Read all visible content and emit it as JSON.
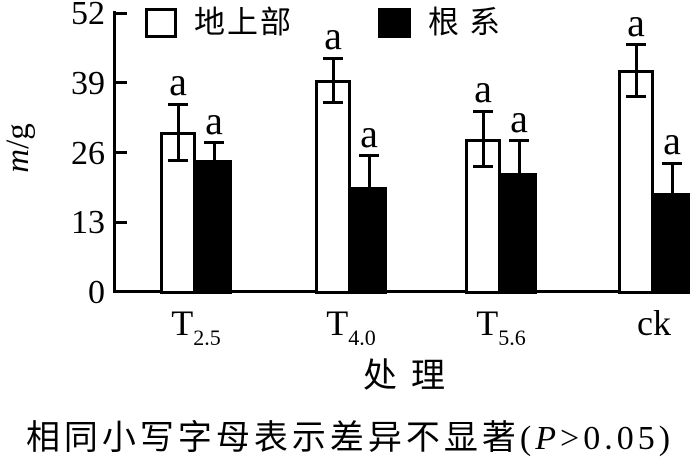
{
  "chart_data": {
    "type": "bar",
    "title": "",
    "xlabel": "处理",
    "ylabel": {
      "italic": "m",
      "rest": "/g"
    },
    "ylim": [
      0,
      52
    ],
    "yticks": [
      0,
      13,
      26,
      39,
      52
    ],
    "grid": false,
    "legend_position": "top",
    "categories": [
      {
        "base": "T",
        "sub": "2.5"
      },
      {
        "base": "T",
        "sub": "4.0"
      },
      {
        "base": "T",
        "sub": "5.6"
      },
      {
        "base": "ck",
        "sub": ""
      }
    ],
    "series": [
      {
        "name": "地上部",
        "fill": "#ffffff",
        "values": [
          29.8,
          39.5,
          28.5,
          41.3
        ],
        "errors": [
          5.2,
          4.1,
          5.2,
          4.8
        ],
        "sig_labels": [
          "a",
          "a",
          "a",
          "a"
        ]
      },
      {
        "name": "根系",
        "fill": "#000000",
        "values": [
          24.6,
          19.6,
          22.2,
          18.5
        ],
        "errors": [
          3.2,
          5.8,
          6.0,
          5.5
        ],
        "sig_labels": [
          "a",
          "a",
          "a",
          "a"
        ]
      }
    ]
  },
  "caption": {
    "pre": "相同小写字母表示差异不显著(",
    "italic": "P",
    "post": ">0.05)"
  },
  "colors": {
    "bar_outline": "#000000",
    "bar_fill_series2": "#000000",
    "background": "#ffffff"
  }
}
